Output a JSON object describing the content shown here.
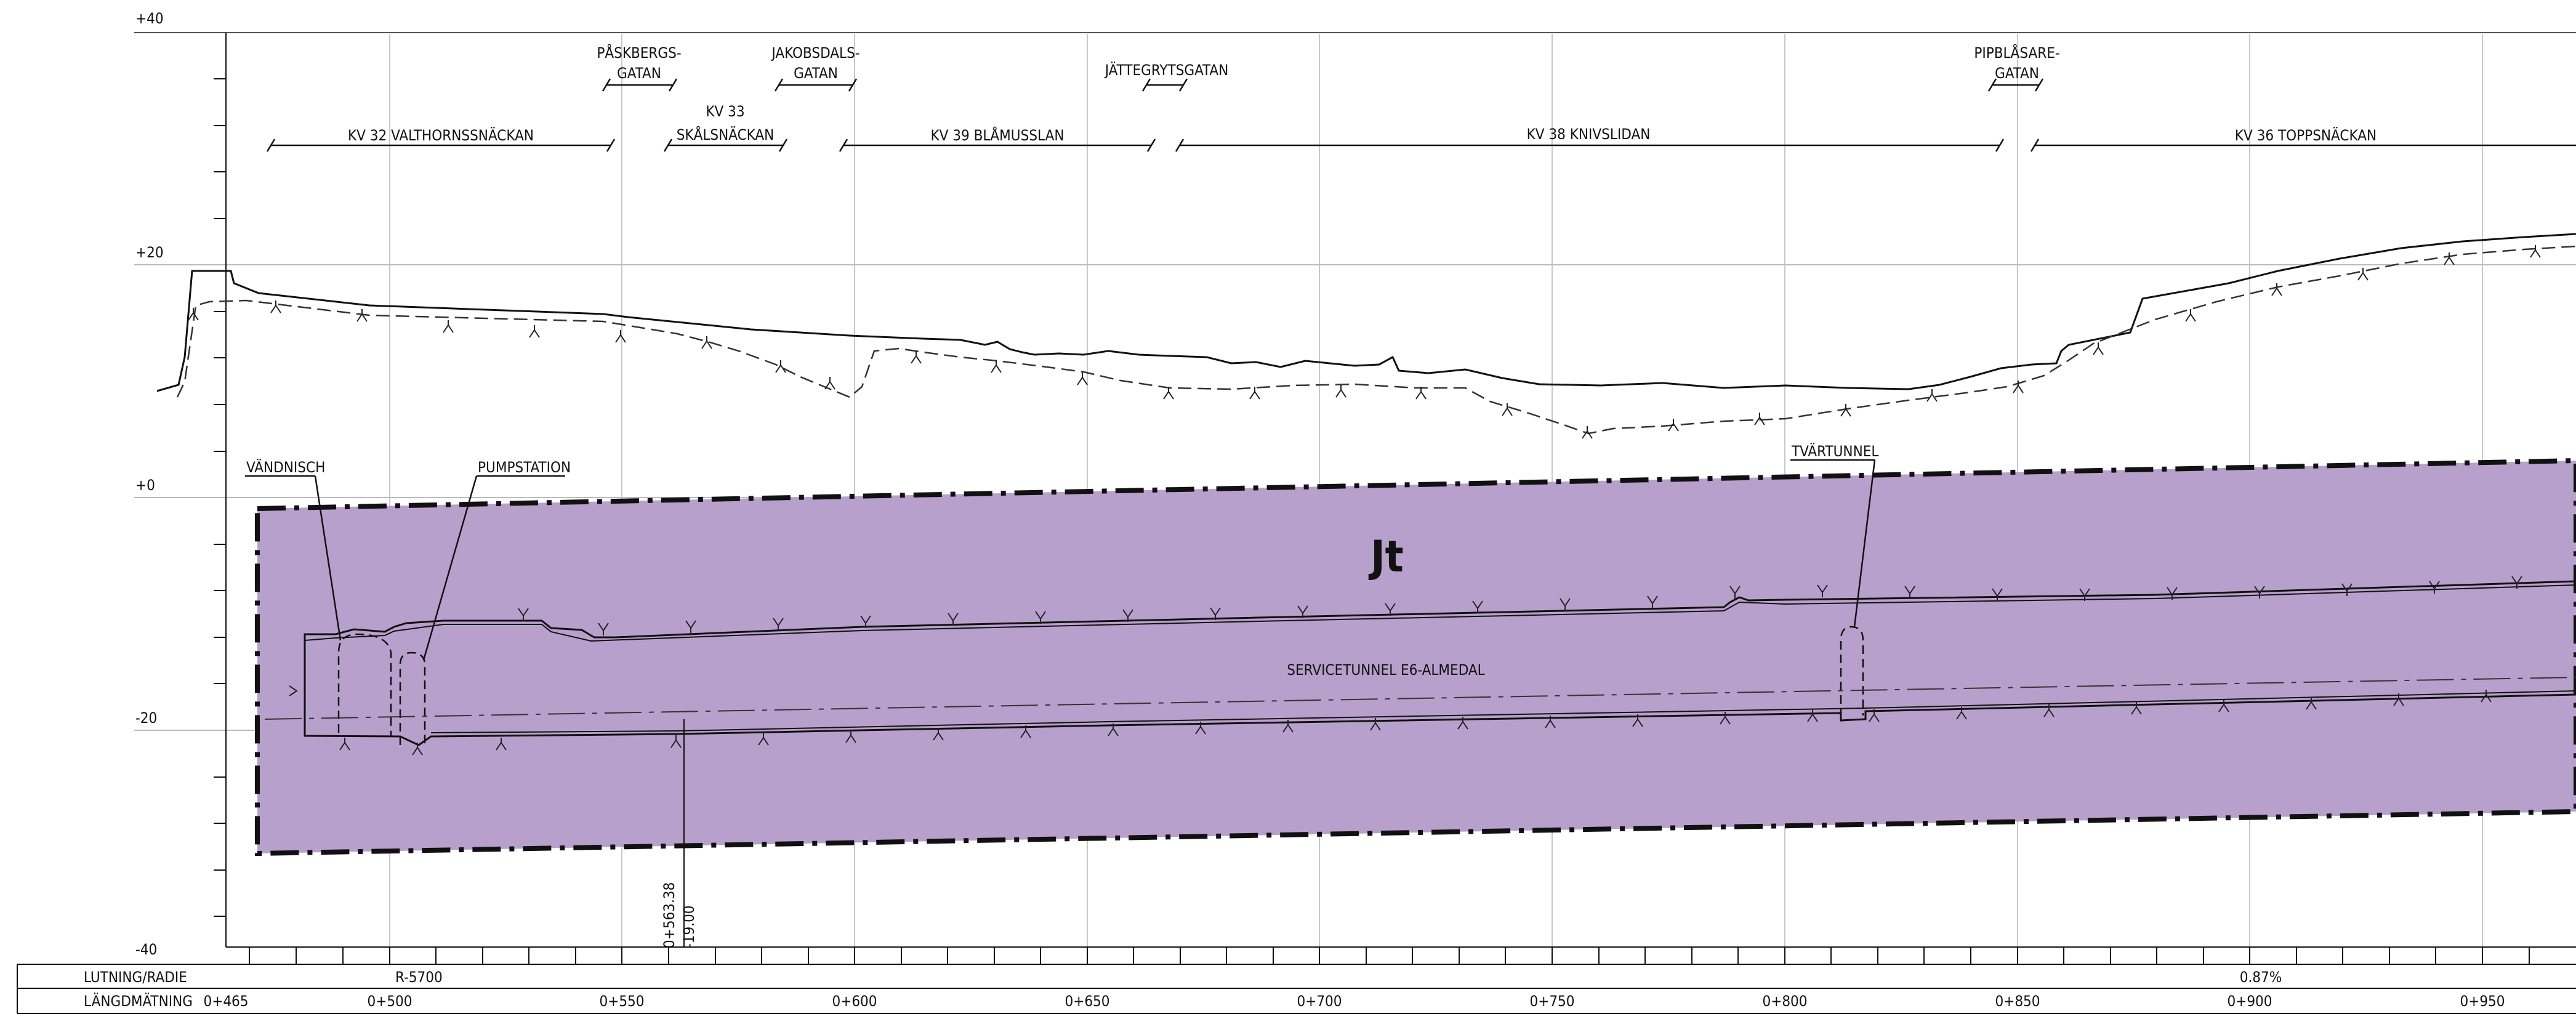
{
  "y_axis_labels": [
    "+40",
    "+20",
    "+0",
    "-20",
    "-40"
  ],
  "properties": [
    {
      "label": "KV 32 VALTHORNSSNÄCKAN"
    },
    {
      "label_lines": [
        "KV 33",
        "SKÅLSNÄCKAN"
      ]
    },
    {
      "label": "KV 39 BLÅMUSSLAN"
    },
    {
      "label": "KV 38 KNIVSLIDAN"
    },
    {
      "label": "KV 36 TOPPSNÄCKAN"
    }
  ],
  "streets": [
    {
      "label_lines": [
        "PÅSKBERGS-",
        "GATAN"
      ]
    },
    {
      "label_lines": [
        "JAKOBSDALS-",
        "GATAN"
      ]
    },
    {
      "label_lines": [
        "JÄTTEGRYTSGATAN"
      ]
    },
    {
      "label_lines": [
        "PIPBLÅSARE-",
        "GATAN"
      ]
    }
  ],
  "callouts": {
    "vandnisch": "VÄNDNISCH",
    "pumpstation": "PUMPSTATION",
    "tvartunnel": "TVÄRTUNNEL"
  },
  "zone_label": "Jt",
  "tunnel_label": "SERVICETUNNEL E6-ALMEDAL",
  "station_marker": {
    "station": "0+563.38",
    "level": "-19.00"
  },
  "table": {
    "row1_header": "LUTNING/RADIE",
    "row2_header": "LÄNGDMÄTNING",
    "radius": "R-5700",
    "gradient": "0.87%",
    "stations": [
      "0+465",
      "0+500",
      "0+550",
      "0+600",
      "0+650",
      "0+700",
      "0+750",
      "0+800",
      "0+850",
      "0+900",
      "0+950"
    ]
  },
  "colors": {
    "zone_fill": "#b8a0cc",
    "line": "#111111",
    "grid": "#c8c8c8"
  }
}
